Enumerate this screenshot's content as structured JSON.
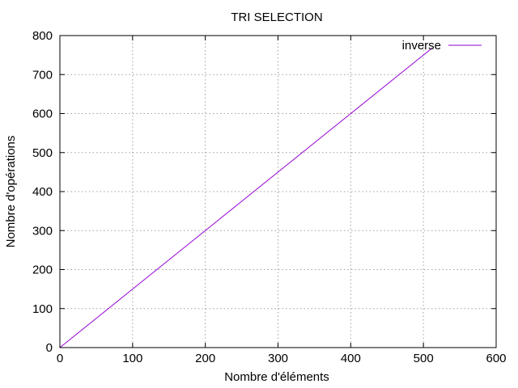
{
  "chart_data": {
    "type": "line",
    "title": "TRI SELECTION",
    "xlabel": "Nombre d'éléments",
    "ylabel": "Nombre d'opérations",
    "xlim": [
      0,
      600
    ],
    "ylim": [
      0,
      800
    ],
    "xticks": [
      0,
      100,
      200,
      300,
      400,
      500,
      600
    ],
    "yticks": [
      0,
      100,
      200,
      300,
      400,
      500,
      600,
      700,
      800
    ],
    "grid": true,
    "legend_position": "top-right",
    "series": [
      {
        "name": "inverse",
        "color": "#9400d3",
        "x": [
          0,
          100,
          200,
          300,
          400,
          500,
          512
        ],
        "y": [
          0,
          150,
          300,
          450,
          600,
          750,
          768
        ]
      }
    ]
  }
}
